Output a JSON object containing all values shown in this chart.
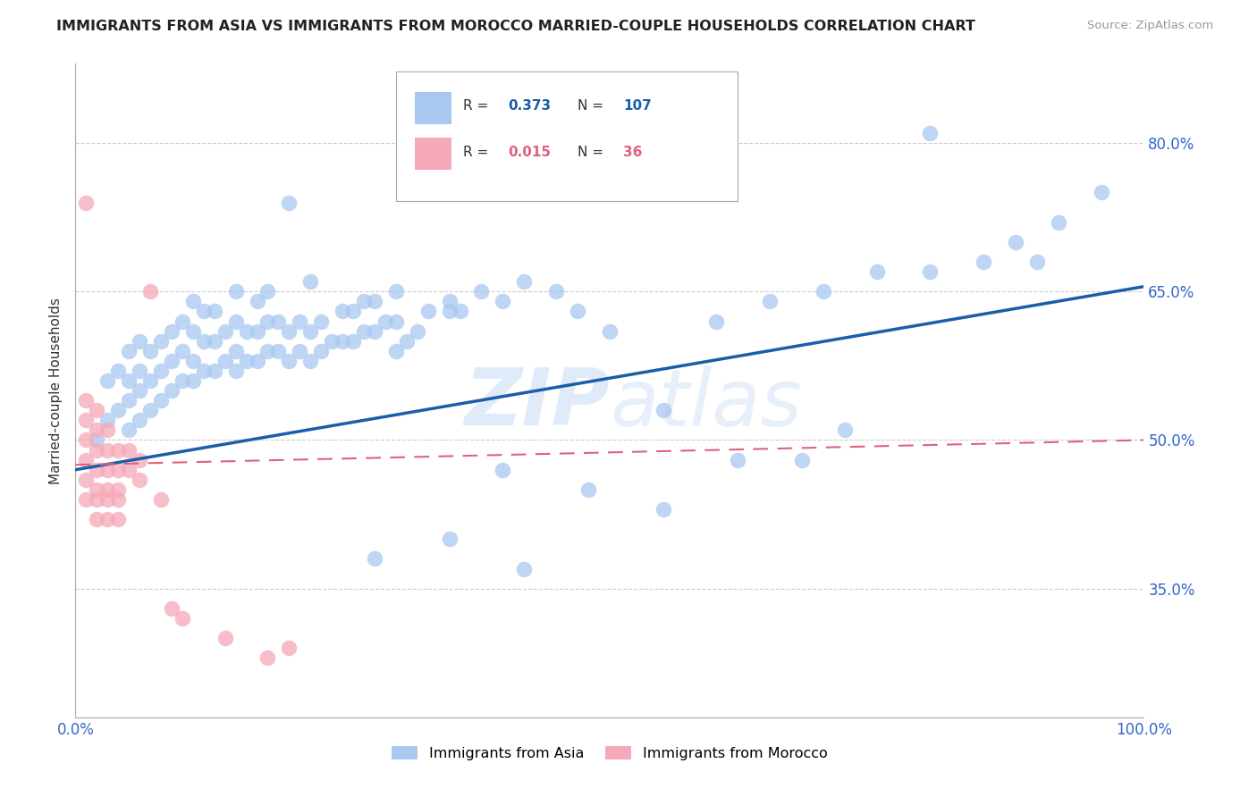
{
  "title": "IMMIGRANTS FROM ASIA VS IMMIGRANTS FROM MOROCCO MARRIED-COUPLE HOUSEHOLDS CORRELATION CHART",
  "source": "Source: ZipAtlas.com",
  "ylabel": "Married-couple Households",
  "xlim": [
    0.0,
    1.0
  ],
  "ylim": [
    0.22,
    0.88
  ],
  "yticks": [
    0.35,
    0.5,
    0.65,
    0.8
  ],
  "ytick_labels": [
    "35.0%",
    "50.0%",
    "65.0%",
    "80.0%"
  ],
  "xticks": [
    0.0,
    0.2,
    0.4,
    0.6,
    0.8,
    1.0
  ],
  "xtick_labels": [
    "0.0%",
    "",
    "",
    "",
    "",
    "100.0%"
  ],
  "legend_r_asia": "0.373",
  "legend_n_asia": "107",
  "legend_r_morocco": "0.015",
  "legend_n_morocco": "36",
  "asia_color": "#A8C8F0",
  "morocco_color": "#F5A8B8",
  "trend_asia_color": "#1A5EAA",
  "trend_morocco_color": "#E06080",
  "background_color": "#FFFFFF",
  "asia_x": [
    0.02,
    0.03,
    0.03,
    0.04,
    0.04,
    0.05,
    0.05,
    0.05,
    0.05,
    0.06,
    0.06,
    0.06,
    0.06,
    0.07,
    0.07,
    0.07,
    0.08,
    0.08,
    0.08,
    0.09,
    0.09,
    0.09,
    0.1,
    0.1,
    0.1,
    0.11,
    0.11,
    0.11,
    0.11,
    0.12,
    0.12,
    0.12,
    0.13,
    0.13,
    0.13,
    0.14,
    0.14,
    0.15,
    0.15,
    0.15,
    0.15,
    0.16,
    0.16,
    0.17,
    0.17,
    0.17,
    0.18,
    0.18,
    0.18,
    0.19,
    0.19,
    0.2,
    0.2,
    0.21,
    0.21,
    0.22,
    0.22,
    0.23,
    0.23,
    0.24,
    0.25,
    0.25,
    0.26,
    0.26,
    0.27,
    0.27,
    0.28,
    0.28,
    0.29,
    0.3,
    0.3,
    0.31,
    0.32,
    0.33,
    0.35,
    0.36,
    0.38,
    0.4,
    0.42,
    0.45,
    0.47,
    0.5,
    0.55,
    0.6,
    0.65,
    0.7,
    0.75,
    0.8,
    0.85,
    0.9,
    0.22,
    0.3,
    0.35,
    0.4,
    0.48,
    0.55,
    0.62,
    0.68,
    0.72,
    0.8,
    0.88,
    0.92,
    0.96,
    0.2,
    0.28,
    0.35,
    0.42
  ],
  "asia_y": [
    0.5,
    0.52,
    0.56,
    0.53,
    0.57,
    0.51,
    0.54,
    0.56,
    0.59,
    0.52,
    0.55,
    0.57,
    0.6,
    0.53,
    0.56,
    0.59,
    0.54,
    0.57,
    0.6,
    0.55,
    0.58,
    0.61,
    0.56,
    0.59,
    0.62,
    0.56,
    0.58,
    0.61,
    0.64,
    0.57,
    0.6,
    0.63,
    0.57,
    0.6,
    0.63,
    0.58,
    0.61,
    0.57,
    0.59,
    0.62,
    0.65,
    0.58,
    0.61,
    0.58,
    0.61,
    0.64,
    0.59,
    0.62,
    0.65,
    0.59,
    0.62,
    0.58,
    0.61,
    0.59,
    0.62,
    0.58,
    0.61,
    0.59,
    0.62,
    0.6,
    0.6,
    0.63,
    0.6,
    0.63,
    0.61,
    0.64,
    0.61,
    0.64,
    0.62,
    0.59,
    0.62,
    0.6,
    0.61,
    0.63,
    0.63,
    0.63,
    0.65,
    0.64,
    0.66,
    0.65,
    0.63,
    0.61,
    0.53,
    0.62,
    0.64,
    0.65,
    0.67,
    0.67,
    0.68,
    0.68,
    0.66,
    0.65,
    0.64,
    0.47,
    0.45,
    0.43,
    0.48,
    0.48,
    0.51,
    0.81,
    0.7,
    0.72,
    0.75,
    0.74,
    0.38,
    0.4,
    0.37
  ],
  "morocco_x": [
    0.01,
    0.01,
    0.01,
    0.01,
    0.01,
    0.01,
    0.01,
    0.02,
    0.02,
    0.02,
    0.02,
    0.02,
    0.02,
    0.02,
    0.03,
    0.03,
    0.03,
    0.03,
    0.03,
    0.03,
    0.04,
    0.04,
    0.04,
    0.04,
    0.04,
    0.05,
    0.05,
    0.06,
    0.06,
    0.07,
    0.08,
    0.09,
    0.1,
    0.14,
    0.18,
    0.2
  ],
  "morocco_y": [
    0.48,
    0.5,
    0.52,
    0.54,
    0.46,
    0.44,
    0.74,
    0.47,
    0.49,
    0.51,
    0.53,
    0.44,
    0.42,
    0.45,
    0.47,
    0.49,
    0.51,
    0.44,
    0.42,
    0.45,
    0.47,
    0.49,
    0.44,
    0.42,
    0.45,
    0.47,
    0.49,
    0.46,
    0.48,
    0.65,
    0.44,
    0.33,
    0.32,
    0.3,
    0.28,
    0.29
  ]
}
